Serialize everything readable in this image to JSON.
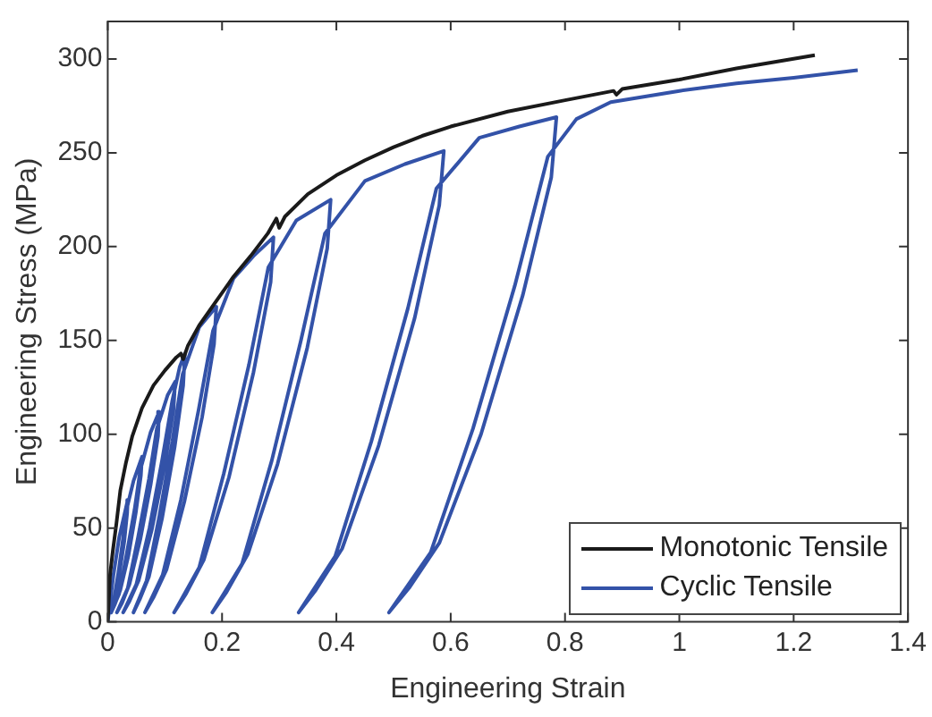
{
  "chart_data": {
    "type": "line",
    "xlabel": "Engineering Strain",
    "ylabel": "Engineering Stress (MPa)",
    "xlim": [
      0,
      1.4
    ],
    "xticks": [
      0,
      {
        "value": 0.2,
        "label": "0.2"
      },
      {
        "value": 0.4,
        "label": "0.4"
      },
      {
        "value": 0.6,
        "label": "0.6"
      },
      {
        "value": 0.8,
        "label": "0.8"
      },
      1,
      {
        "value": 1.2,
        "label": "1.2"
      },
      {
        "value": 1.4,
        "label": "1.4"
      }
    ],
    "ylim": [
      0,
      320
    ],
    "yticks": [
      0,
      50,
      100,
      150,
      200,
      250,
      300
    ],
    "grid": false,
    "legend": "bottom right",
    "marker": "none",
    "line_style": "solid",
    "series": [
      {
        "name": "Monotonic Tensile",
        "color": "#1a1a1a",
        "x": [
          0,
          0.004,
          0.009,
          0.015,
          0.022,
          0.032,
          0.043,
          0.06,
          0.08,
          0.1,
          0.12,
          0.128,
          0.132,
          0.14,
          0.16,
          0.19,
          0.22,
          0.25,
          0.28,
          0.295,
          0.3,
          0.31,
          0.35,
          0.4,
          0.45,
          0.5,
          0.55,
          0.6,
          0.7,
          0.8,
          0.885,
          0.89,
          0.9,
          1.0,
          1.1,
          1.237
        ],
        "values": [
          0,
          25,
          38,
          52,
          70,
          85,
          99,
          114,
          126,
          134,
          141,
          143,
          140,
          147,
          158,
          171,
          184,
          195,
          207,
          215,
          210,
          216,
          228,
          238,
          246,
          253,
          259,
          264,
          272,
          278,
          283,
          281,
          284,
          289,
          295,
          302
        ]
      },
      {
        "name": "Cyclic Tensile",
        "color": "#3352a8",
        "x": [
          0,
          0.01,
          0.02,
          0.035,
          0.034,
          0.029,
          0.021,
          0.013,
          0.007,
          0.003,
          0.011,
          0.019,
          0.027,
          0.033,
          0.045,
          0.06,
          0.058,
          0.049,
          0.036,
          0.022,
          0.012,
          0.006,
          0.02,
          0.033,
          0.047,
          0.057,
          0.075,
          0.09,
          0.088,
          0.075,
          0.057,
          0.038,
          0.025,
          0.016,
          0.035,
          0.053,
          0.072,
          0.086,
          0.105,
          0.118,
          0.115,
          0.1,
          0.077,
          0.054,
          0.038,
          0.027,
          0.05,
          0.073,
          0.095,
          0.113,
          0.126,
          0.135,
          0.132,
          0.117,
          0.095,
          0.072,
          0.056,
          0.045,
          0.068,
          0.09,
          0.113,
          0.131,
          0.16,
          0.19,
          0.186,
          0.165,
          0.134,
          0.103,
          0.08,
          0.065,
          0.096,
          0.128,
          0.159,
          0.184,
          0.22,
          0.255,
          0.29,
          0.285,
          0.255,
          0.212,
          0.168,
          0.137,
          0.116,
          0.16,
          0.203,
          0.247,
          0.281,
          0.33,
          0.39,
          0.384,
          0.349,
          0.297,
          0.245,
          0.208,
          0.183,
          0.235,
          0.287,
          0.338,
          0.38,
          0.45,
          0.52,
          0.588,
          0.58,
          0.537,
          0.474,
          0.41,
          0.364,
          0.334,
          0.398,
          0.461,
          0.525,
          0.575,
          0.65,
          0.72,
          0.785,
          0.776,
          0.726,
          0.653,
          0.58,
          0.527,
          0.492,
          0.565,
          0.639,
          0.712,
          0.77,
          0.82,
          0.88,
          1.0,
          1.1,
          1.2,
          1.312
        ],
        "values": [
          0,
          25,
          45,
          65,
          58,
          43,
          27,
          13,
          8,
          5,
          12,
          27,
          45,
          60,
          75,
          88,
          78,
          58,
          35,
          17,
          9,
          5,
          15,
          36,
          60,
          81,
          101,
          112,
          99,
          73,
          44,
          20,
          10,
          5,
          18,
          45,
          76,
          103,
          121,
          128,
          113,
          84,
          49,
          22,
          11,
          5,
          20,
          50,
          86,
          118,
          136,
          143,
          126,
          93,
          55,
          24,
          12,
          5,
          22,
          56,
          96,
          132,
          157,
          168,
          148,
          109,
          64,
          28,
          13,
          5,
          25,
          65,
          113,
          155,
          183,
          195,
          205,
          181,
          133,
          77,
          33,
          15,
          5,
          29,
          79,
          137,
          189,
          214,
          225,
          199,
          146,
          84,
          36,
          16,
          5,
          31,
          86,
          150,
          207,
          235,
          244,
          251,
          222,
          162,
          94,
          39,
          17,
          5,
          35,
          96,
          167,
          231,
          258,
          264,
          269,
          237,
          174,
          100,
          42,
          18,
          5,
          37,
          103,
          179,
          248,
          268,
          277,
          283,
          287,
          290,
          294
        ]
      }
    ]
  }
}
